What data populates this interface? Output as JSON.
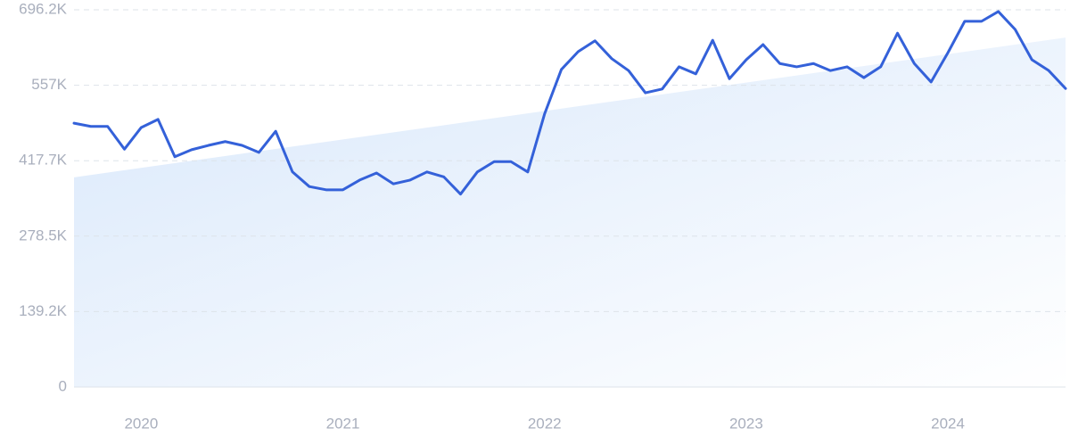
{
  "chart_data": {
    "type": "line",
    "categories": [
      null,
      null,
      null,
      null,
      "2020",
      null,
      null,
      null,
      null,
      null,
      null,
      null,
      null,
      null,
      null,
      null,
      "2021",
      null,
      null,
      null,
      null,
      null,
      null,
      null,
      null,
      null,
      null,
      null,
      "2022",
      null,
      null,
      null,
      null,
      null,
      null,
      null,
      null,
      null,
      null,
      null,
      "2023",
      null,
      null,
      null,
      null,
      null,
      null,
      null,
      null,
      null,
      null,
      null,
      "2024",
      null,
      null,
      null,
      null,
      null,
      null,
      null
    ],
    "series": [
      {
        "color": "#3461d9",
        "values": [
          487000,
          481000,
          481000,
          439000,
          479000,
          494000,
          425000,
          438000,
          446000,
          453000,
          446000,
          433000,
          472000,
          397000,
          370000,
          364000,
          364000,
          382000,
          395000,
          375000,
          382000,
          397000,
          388000,
          356000,
          397000,
          416000,
          416000,
          397000,
          504000,
          586000,
          619000,
          639000,
          606000,
          584000,
          543000,
          550000,
          591000,
          578000,
          640000,
          569000,
          604000,
          632000,
          597000,
          591000,
          597000,
          584000,
          591000,
          571000,
          591000,
          653000,
          597000,
          563000,
          617000,
          675000,
          675000,
          693000,
          660000,
          604000,
          584000,
          551000
        ]
      }
    ],
    "trend": {
      "color": "#d9e8fb",
      "values": [
        387000,
        645000
      ]
    },
    "ylim": [
      0,
      696200
    ],
    "yticks": [
      0,
      {
        "value": 139200,
        "label": "139.2K"
      },
      {
        "value": 278500,
        "label": "278.5K"
      },
      {
        "value": 417700,
        "label": "417.7K"
      },
      {
        "value": 557000,
        "label": "557K"
      },
      {
        "value": 696200,
        "label": "696.2K"
      }
    ],
    "grid": true
  }
}
